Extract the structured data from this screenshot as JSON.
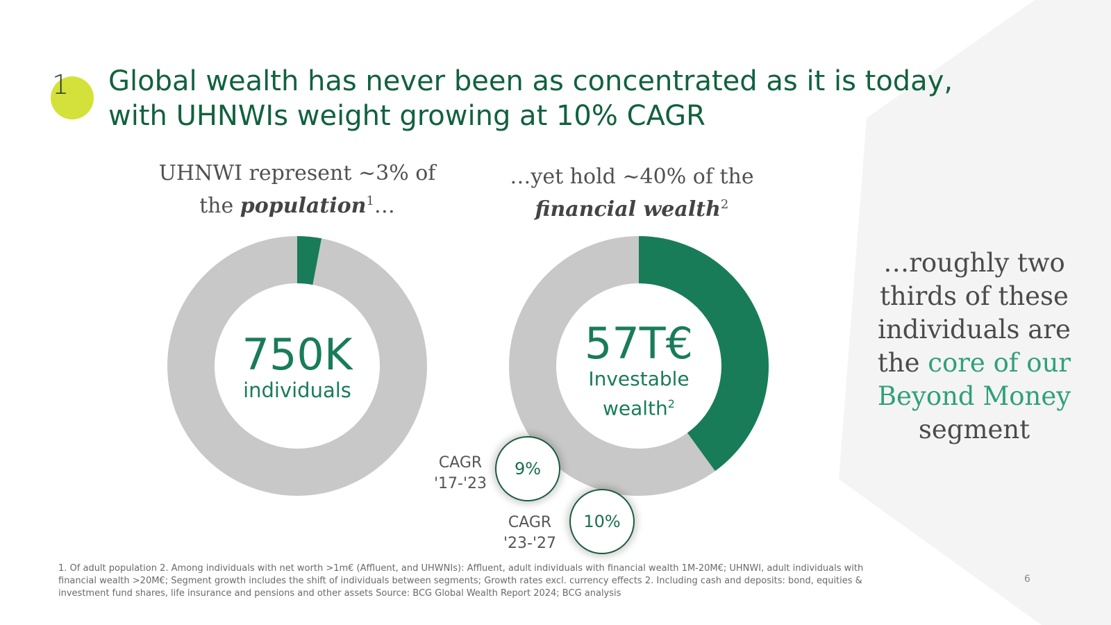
{
  "section": {
    "number": "1"
  },
  "title": {
    "line1": "Global wealth has never been as concentrated as it is today,",
    "line2": "with UHNWIs weight growing at 10% CAGR"
  },
  "left_chart": {
    "caption_line1": "UHNWI represent ~3% of",
    "caption_the": "the ",
    "caption_emph": "population",
    "caption_sup": "1",
    "caption_tail": "…",
    "share_percent": 3,
    "value": "750K",
    "unit": "individuals"
  },
  "right_chart": {
    "caption_line1": "…yet hold ~40% of the",
    "caption_emph": "financial wealth",
    "caption_sup": "2",
    "share_percent": 40,
    "value": "57T€",
    "unit_line1": "Investable",
    "unit_line2": "wealth",
    "unit_sup": "2"
  },
  "cagr": [
    {
      "label_line1": "CAGR",
      "label_line2": "'17-'23",
      "value": "9%"
    },
    {
      "label_line1": "CAGR",
      "label_line2": "'23-'27",
      "value": "10%"
    }
  ],
  "right_text": {
    "line1": "…roughly two",
    "line2": "thirds of these",
    "line3": "individuals are",
    "line4_plain": "the ",
    "line4_accent": "core of our",
    "line5_accent": "Beyond Money",
    "line6": "segment"
  },
  "footnote": {
    "line1": "1. Of adult population 2. Among individuals with net worth >1m€ (Affluent, and UHWNIs): Affluent, adult individuals with financial wealth 1M-20M€; UHNWI, adult individuals with",
    "line2": "financial wealth >20M€; Segment growth includes the shift of individuals between segments; Growth rates excl. currency effects  2. Including cash and deposits: bond, equities &",
    "line3": "investment fund shares, life insurance and pensions and other assets   Source: BCG Global Wealth Report 2024; BCG analysis"
  },
  "page_number": "6",
  "colors": {
    "green_dark": "#197c58",
    "gray_ring": "#c8c8c8",
    "accent_lime": "#d4e13a",
    "accent_text": "#2fa07a",
    "title_green": "#12613f"
  }
}
